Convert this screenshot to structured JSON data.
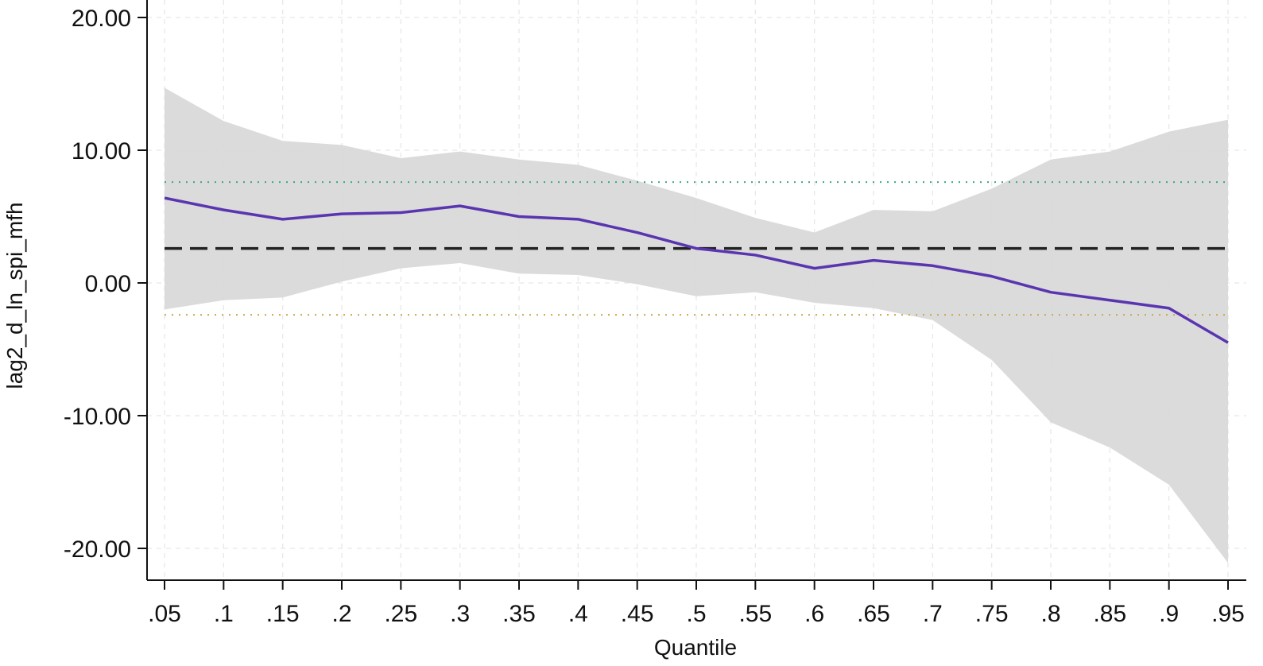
{
  "chart_data": {
    "type": "line",
    "xlabel": "Quantile",
    "ylabel": "lag2_d_ln_spi_mfh",
    "x": [
      0.05,
      0.1,
      0.15,
      0.2,
      0.25,
      0.3,
      0.35,
      0.4,
      0.45,
      0.5,
      0.55,
      0.6,
      0.65,
      0.7,
      0.75,
      0.8,
      0.85,
      0.9,
      0.95
    ],
    "x_tick_labels": [
      ".05",
      ".1",
      ".15",
      ".2",
      ".25",
      ".3",
      ".35",
      ".4",
      ".45",
      ".5",
      ".55",
      ".6",
      ".65",
      ".7",
      ".75",
      ".8",
      ".85",
      ".9",
      ".95"
    ],
    "y_ticks": [
      20,
      10,
      0,
      -10,
      -20
    ],
    "y_tick_labels": [
      "20.00",
      "10.00",
      "0.00",
      "-10.00",
      "-20.00"
    ],
    "ylim": [
      -22.5,
      20.3
    ],
    "xlim": [
      0.035,
      0.96
    ],
    "grid": true,
    "quantile_estimate": [
      6.4,
      5.5,
      4.8,
      5.2,
      5.3,
      5.8,
      5.0,
      4.8,
      3.8,
      2.6,
      2.1,
      1.1,
      1.7,
      1.3,
      0.5,
      -0.7,
      -1.3,
      -1.9,
      -4.5
    ],
    "ci_upper": [
      14.7,
      12.2,
      10.7,
      10.4,
      9.4,
      9.9,
      9.3,
      8.9,
      7.7,
      6.4,
      4.9,
      3.8,
      5.5,
      5.4,
      7.1,
      9.3,
      9.9,
      11.4,
      12.3
    ],
    "ci_lower": [
      -2.0,
      -1.3,
      -1.1,
      0.1,
      1.1,
      1.5,
      0.7,
      0.6,
      -0.1,
      -1.0,
      -0.7,
      -1.5,
      -1.9,
      -2.8,
      -5.8,
      -10.5,
      -12.4,
      -15.2,
      -21.1
    ],
    "ols_estimate": 2.6,
    "ols_ci_upper": 7.6,
    "ols_ci_lower": -2.4,
    "colors": {
      "estimate_line": "#5a35b0",
      "ci_band": "#d9d9d9",
      "ols_line": "#222222",
      "ols_ci_upper": "#3aa88a",
      "ols_ci_lower": "#c8a84a",
      "grid": "#e6e6e6",
      "axis": "#111111"
    }
  }
}
